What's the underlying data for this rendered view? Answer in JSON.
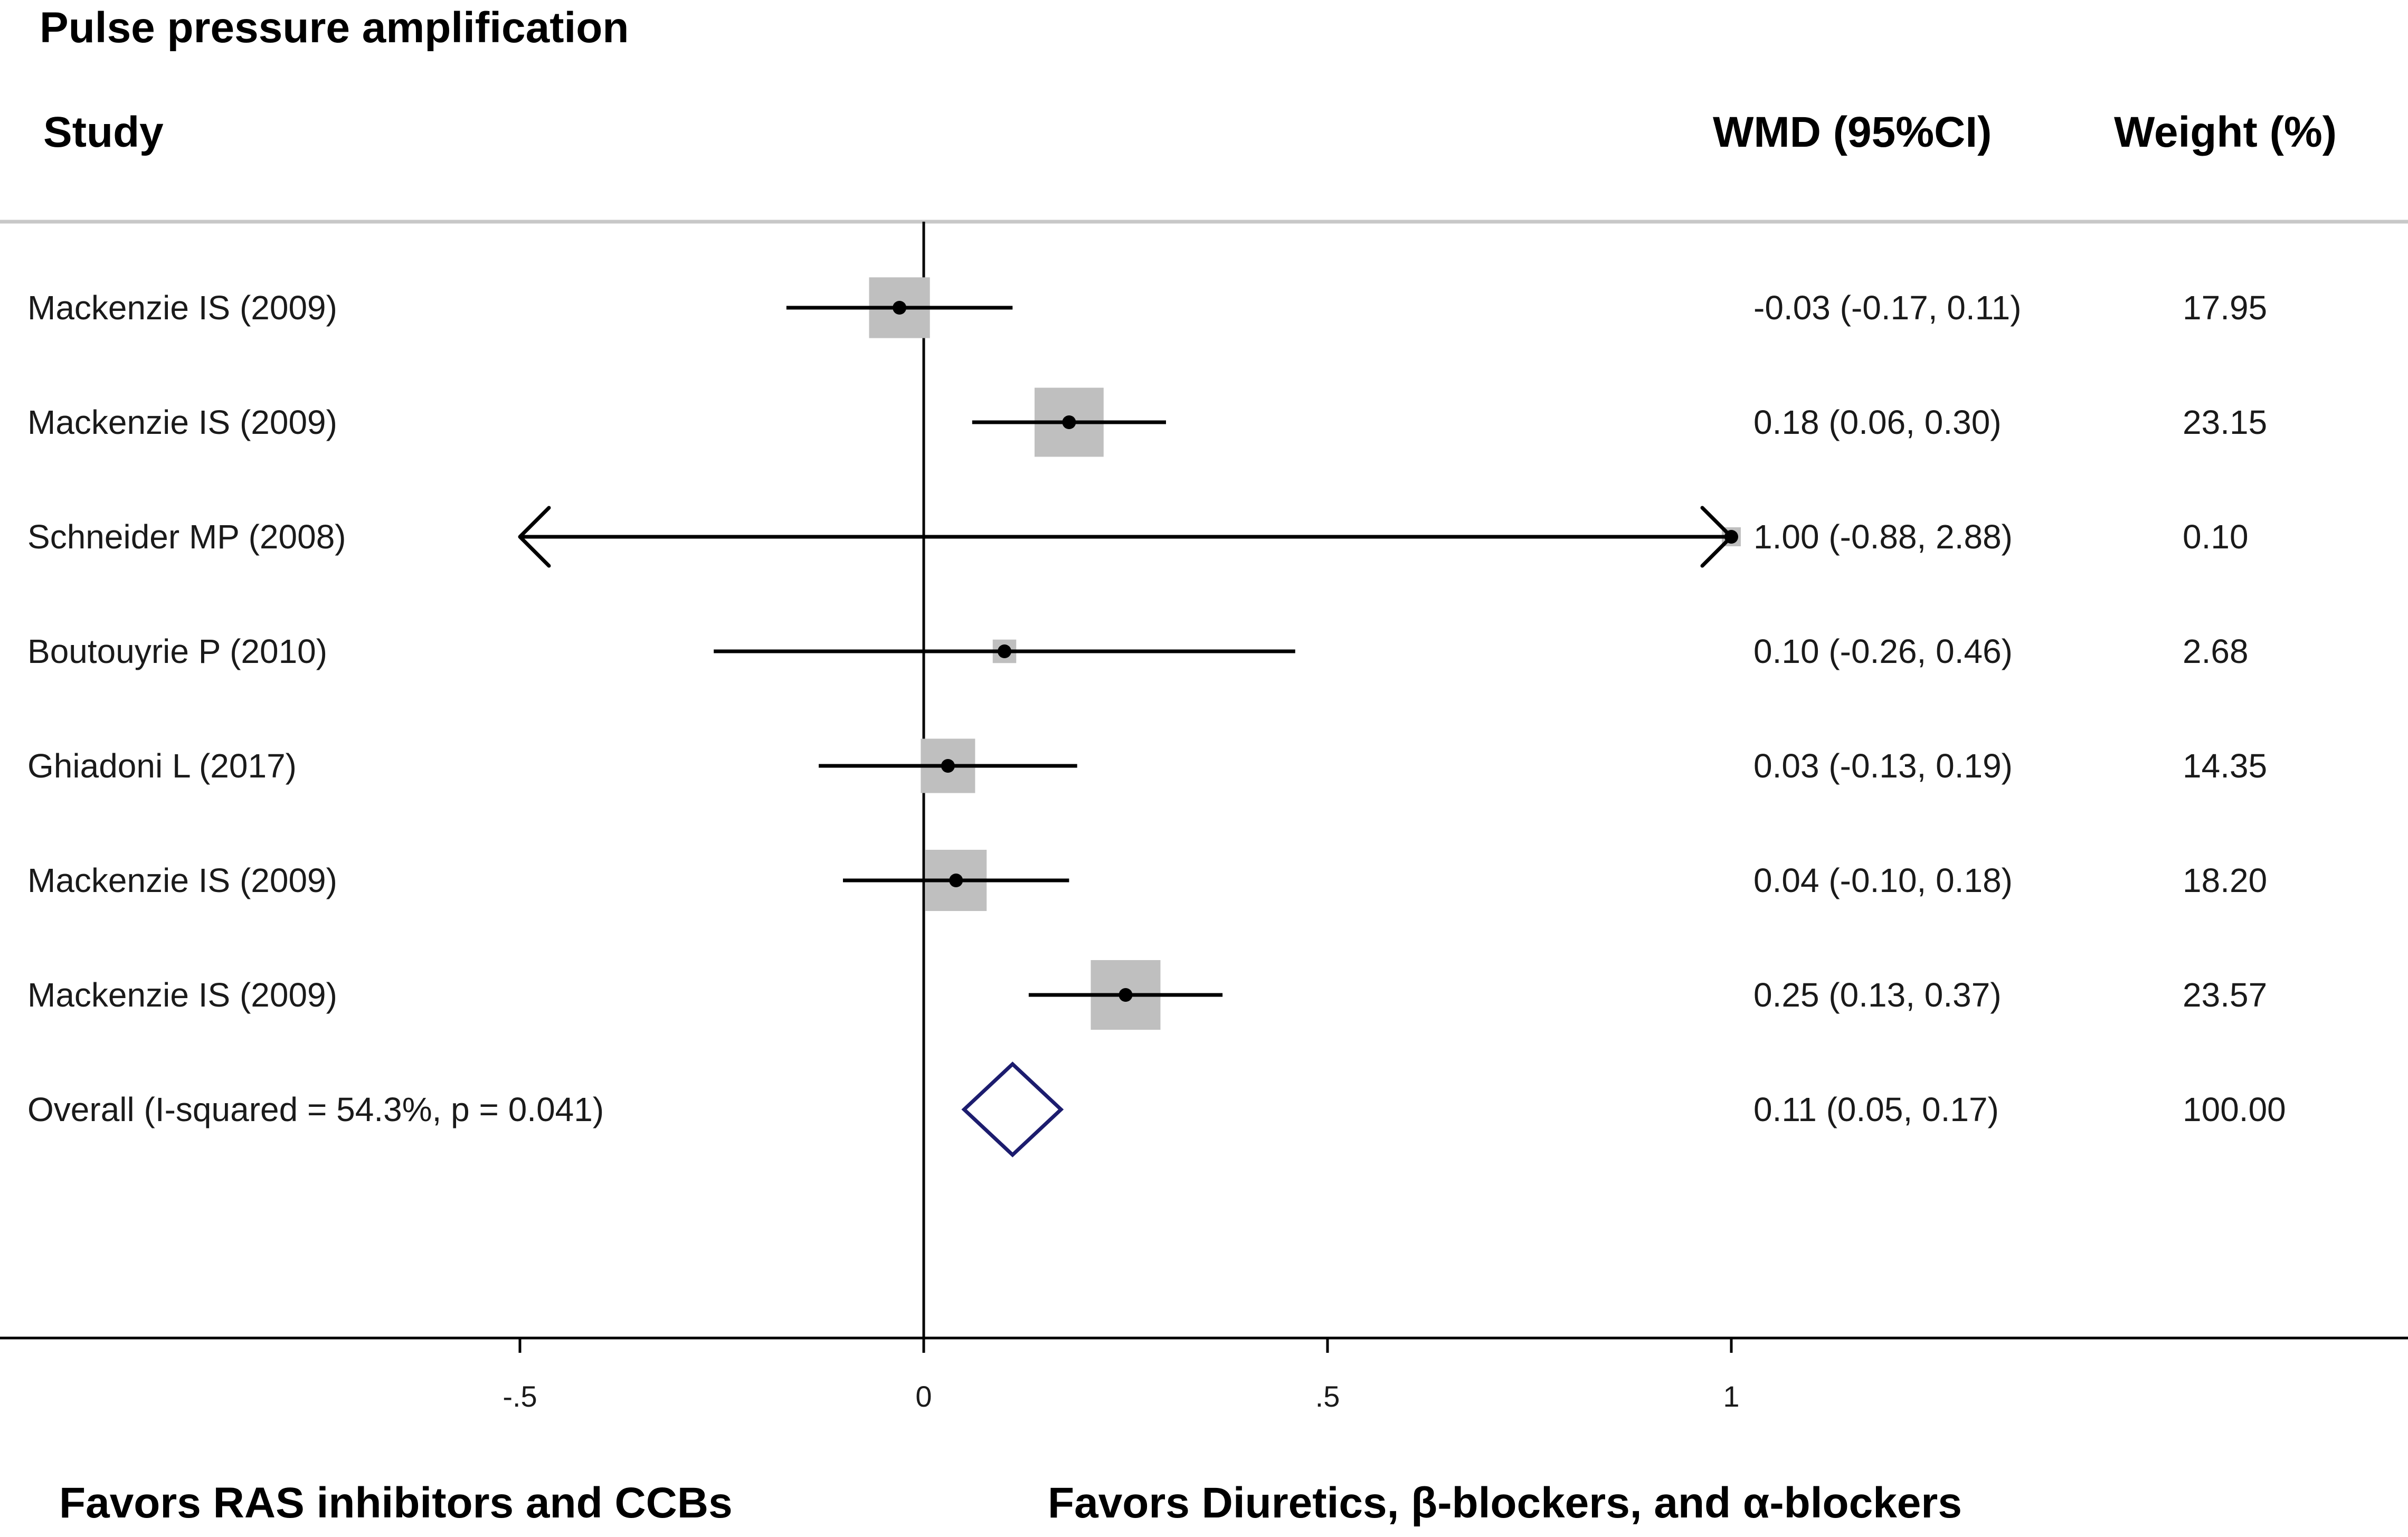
{
  "chart_data": {
    "type": "forest",
    "title": "Pulse pressure amplification",
    "columns": {
      "study": "Study",
      "effect": "WMD (95%CI)",
      "weight": "Weight (%)"
    },
    "studies": [
      {
        "label": "Mackenzie IS (2009)",
        "wmd": -0.03,
        "ci_low": -0.17,
        "ci_high": 0.11,
        "ci_text": "-0.03 (-0.17, 0.11)",
        "weight": 17.95,
        "weight_text": "17.95"
      },
      {
        "label": "Mackenzie IS (2009)",
        "wmd": 0.18,
        "ci_low": 0.06,
        "ci_high": 0.3,
        "ci_text": "0.18 (0.06, 0.30)",
        "weight": 23.15,
        "weight_text": "23.15"
      },
      {
        "label": "Schneider MP (2008)",
        "wmd": 1.0,
        "ci_low": -0.88,
        "ci_high": 2.88,
        "ci_text": "1.00 (-0.88, 2.88)",
        "weight": 0.1,
        "weight_text": "0.10"
      },
      {
        "label": "Boutouyrie P (2010)",
        "wmd": 0.1,
        "ci_low": -0.26,
        "ci_high": 0.46,
        "ci_text": "0.10 (-0.26, 0.46)",
        "weight": 2.68,
        "weight_text": "2.68"
      },
      {
        "label": "Ghiadoni L (2017)",
        "wmd": 0.03,
        "ci_low": -0.13,
        "ci_high": 0.19,
        "ci_text": "0.03 (-0.13, 0.19)",
        "weight": 14.35,
        "weight_text": "14.35"
      },
      {
        "label": "Mackenzie IS (2009)",
        "wmd": 0.04,
        "ci_low": -0.1,
        "ci_high": 0.18,
        "ci_text": "0.04 (-0.10, 0.18)",
        "weight": 18.2,
        "weight_text": "18.20"
      },
      {
        "label": "Mackenzie IS (2009)",
        "wmd": 0.25,
        "ci_low": 0.13,
        "ci_high": 0.37,
        "ci_text": "0.25 (0.13, 0.37)",
        "weight": 23.57,
        "weight_text": "23.57"
      }
    ],
    "overall": {
      "label": "Overall  (I-squared = 54.3%, p = 0.041)",
      "wmd": 0.11,
      "ci_low": 0.05,
      "ci_high": 0.17,
      "ci_text": "0.11 (0.05, 0.17)",
      "weight_text": "100.00"
    },
    "xlim": [
      -0.5,
      1
    ],
    "xticks": [
      -0.5,
      0,
      0.5,
      1
    ],
    "xtick_labels": [
      "-.5",
      "0",
      ".5",
      "1"
    ],
    "favors_left": "Favors RAS inhibitors and CCBs",
    "favors_right": "Favors Diuretics, β-blockers, and α-blockers",
    "colors": {
      "box": "#bfbfbf",
      "line": "#000000",
      "diamond": "#1c1c6e",
      "rule": "#c8c8c8"
    }
  }
}
